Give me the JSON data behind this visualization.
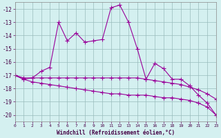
{
  "line1_x": [
    0,
    1,
    2,
    3,
    4,
    5,
    6,
    7,
    8,
    9,
    10,
    11,
    12,
    13,
    14,
    15,
    16,
    17,
    18,
    19,
    20,
    21,
    22,
    23
  ],
  "line1_y": [
    -17.0,
    -17.3,
    -17.2,
    -16.7,
    -16.4,
    -13.0,
    -14.4,
    -13.8,
    -14.5,
    -14.4,
    -14.3,
    -11.9,
    -11.7,
    -13.0,
    -15.0,
    -17.3,
    -16.1,
    -16.5,
    -17.3,
    -17.3,
    -17.8,
    -18.5,
    -19.1,
    -20.0
  ],
  "line2_x": [
    0,
    1,
    2,
    3,
    4,
    5,
    6,
    7,
    8,
    9,
    10,
    11,
    12,
    13,
    14,
    15,
    16,
    17,
    18,
    19,
    20,
    21,
    22,
    23
  ],
  "line2_y": [
    -17.0,
    -17.2,
    -17.2,
    -17.2,
    -17.2,
    -17.2,
    -17.2,
    -17.2,
    -17.2,
    -17.2,
    -17.2,
    -17.2,
    -17.2,
    -17.2,
    -17.2,
    -17.3,
    -17.4,
    -17.5,
    -17.6,
    -17.7,
    -17.9,
    -18.1,
    -18.4,
    -18.8
  ],
  "line3_x": [
    0,
    1,
    2,
    3,
    4,
    5,
    6,
    7,
    8,
    9,
    10,
    11,
    12,
    13,
    14,
    15,
    16,
    17,
    18,
    19,
    20,
    21,
    22,
    23
  ],
  "line3_y": [
    -17.0,
    -17.3,
    -17.5,
    -17.6,
    -17.7,
    -17.8,
    -17.9,
    -18.0,
    -18.1,
    -18.2,
    -18.3,
    -18.4,
    -18.4,
    -18.5,
    -18.5,
    -18.5,
    -18.6,
    -18.7,
    -18.7,
    -18.8,
    -18.9,
    -19.1,
    -19.4,
    -20.0
  ],
  "line_color": "#990099",
  "bg_color": "#d4f0f0",
  "grid_color": "#99bbbb",
  "xlabel": "Windchill (Refroidissement éolien,°C)",
  "xlim": [
    0,
    23
  ],
  "ylim": [
    -20.5,
    -11.5
  ],
  "yticks": [
    -20,
    -19,
    -18,
    -17,
    -16,
    -15,
    -14,
    -13,
    -12
  ],
  "xticks": [
    0,
    1,
    2,
    3,
    4,
    5,
    6,
    7,
    8,
    9,
    10,
    11,
    12,
    13,
    14,
    15,
    16,
    17,
    18,
    19,
    20,
    21,
    22,
    23
  ],
  "marker_size": 2.0,
  "line_width": 0.8
}
